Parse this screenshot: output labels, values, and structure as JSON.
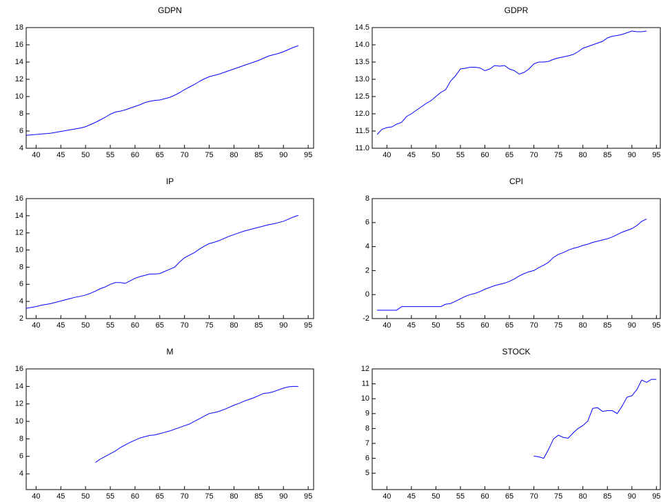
{
  "chart_data": [
    {
      "type": "line",
      "title": "GDPN",
      "color": "#0000ff",
      "x": [
        38,
        39,
        40,
        41,
        42,
        43,
        44,
        45,
        46,
        47,
        48,
        49,
        50,
        51,
        52,
        53,
        54,
        55,
        56,
        57,
        58,
        59,
        60,
        61,
        62,
        63,
        64,
        65,
        66,
        67,
        68,
        69,
        70,
        71,
        72,
        73,
        74,
        75,
        76,
        77,
        78,
        79,
        80,
        81,
        82,
        83,
        84,
        85,
        86,
        87,
        88,
        89,
        90,
        91,
        92,
        93
      ],
      "values": [
        5.5,
        5.55,
        5.6,
        5.65,
        5.7,
        5.75,
        5.85,
        5.95,
        6.05,
        6.15,
        6.25,
        6.35,
        6.5,
        6.75,
        7.0,
        7.3,
        7.6,
        7.95,
        8.2,
        8.3,
        8.45,
        8.65,
        8.85,
        9.05,
        9.3,
        9.45,
        9.55,
        9.6,
        9.75,
        9.9,
        10.15,
        10.45,
        10.8,
        11.1,
        11.4,
        11.75,
        12.05,
        12.3,
        12.45,
        12.6,
        12.8,
        13.0,
        13.2,
        13.4,
        13.6,
        13.8,
        14.0,
        14.2,
        14.45,
        14.7,
        14.85,
        15.0,
        15.2,
        15.45,
        15.7,
        15.9
      ],
      "xlim": [
        38,
        96.1
      ],
      "xticks": [
        40,
        45,
        50,
        55,
        60,
        65,
        70,
        75,
        80,
        85,
        90,
        95
      ],
      "ylim": [
        4,
        18
      ],
      "yticks": [
        4,
        6,
        8,
        10,
        12,
        14,
        16,
        18
      ]
    },
    {
      "type": "line",
      "title": "GDPR",
      "color": "#0000ff",
      "x": [
        38,
        39,
        40,
        41,
        42,
        43,
        44,
        45,
        46,
        47,
        48,
        49,
        50,
        51,
        52,
        53,
        54,
        55,
        56,
        57,
        58,
        59,
        60,
        61,
        62,
        63,
        64,
        65,
        66,
        67,
        68,
        69,
        70,
        71,
        72,
        73,
        74,
        75,
        76,
        77,
        78,
        79,
        80,
        81,
        82,
        83,
        84,
        85,
        86,
        87,
        88,
        89,
        90,
        91,
        92,
        93
      ],
      "values": [
        11.4,
        11.55,
        11.6,
        11.62,
        11.7,
        11.75,
        11.92,
        12.0,
        12.1,
        12.2,
        12.3,
        12.38,
        12.5,
        12.62,
        12.7,
        12.95,
        13.1,
        13.3,
        13.32,
        13.35,
        13.35,
        13.33,
        13.25,
        13.3,
        13.4,
        13.38,
        13.4,
        13.3,
        13.25,
        13.15,
        13.2,
        13.3,
        13.45,
        13.5,
        13.5,
        13.52,
        13.58,
        13.62,
        13.65,
        13.68,
        13.72,
        13.8,
        13.9,
        13.95,
        14.0,
        14.05,
        14.1,
        14.2,
        14.25,
        14.27,
        14.3,
        14.35,
        14.4,
        14.38,
        14.38,
        14.4
      ],
      "xlim": [
        37,
        95.8
      ],
      "xticks": [
        40,
        45,
        50,
        55,
        60,
        65,
        70,
        75,
        80,
        85,
        90,
        95
      ],
      "ylim": [
        11.0,
        14.5
      ],
      "yticks": [
        {
          "value": 11,
          "label": "11.0"
        },
        11.5,
        {
          "value": 12,
          "label": "12.0"
        },
        12.5,
        {
          "value": 13,
          "label": "13.0"
        },
        13.5,
        {
          "value": 14,
          "label": "14.0"
        },
        14.5
      ]
    },
    {
      "type": "line",
      "title": "IP",
      "color": "#0000ff",
      "x": [
        38,
        39,
        40,
        41,
        42,
        43,
        44,
        45,
        46,
        47,
        48,
        49,
        50,
        51,
        52,
        53,
        54,
        55,
        56,
        57,
        58,
        59,
        60,
        61,
        62,
        63,
        64,
        65,
        66,
        67,
        68,
        69,
        70,
        71,
        72,
        73,
        74,
        75,
        76,
        77,
        78,
        79,
        80,
        81,
        82,
        83,
        84,
        85,
        86,
        87,
        88,
        89,
        90,
        91,
        92,
        93
      ],
      "values": [
        3.2,
        3.3,
        3.4,
        3.55,
        3.65,
        3.75,
        3.9,
        4.05,
        4.2,
        4.35,
        4.5,
        4.6,
        4.75,
        4.95,
        5.2,
        5.5,
        5.7,
        6.0,
        6.2,
        6.2,
        6.1,
        6.4,
        6.7,
        6.9,
        7.05,
        7.2,
        7.2,
        7.25,
        7.5,
        7.75,
        8.0,
        8.6,
        9.1,
        9.4,
        9.7,
        10.1,
        10.45,
        10.75,
        10.9,
        11.1,
        11.35,
        11.6,
        11.8,
        12.0,
        12.2,
        12.35,
        12.5,
        12.65,
        12.8,
        12.95,
        13.05,
        13.2,
        13.35,
        13.6,
        13.85,
        14.05
      ],
      "xlim": [
        38,
        96.1
      ],
      "xticks": [
        40,
        45,
        50,
        55,
        60,
        65,
        70,
        75,
        80,
        85,
        90,
        95
      ],
      "ylim": [
        2,
        16
      ],
      "yticks": [
        2,
        4,
        6,
        8,
        10,
        12,
        14,
        16
      ]
    },
    {
      "type": "line",
      "title": "CPI",
      "color": "#0000ff",
      "x": [
        38,
        39,
        40,
        41,
        42,
        43,
        44,
        45,
        46,
        47,
        48,
        49,
        50,
        51,
        52,
        53,
        54,
        55,
        56,
        57,
        58,
        59,
        60,
        61,
        62,
        63,
        64,
        65,
        66,
        67,
        68,
        69,
        70,
        71,
        72,
        73,
        74,
        75,
        76,
        77,
        78,
        79,
        80,
        81,
        82,
        83,
        84,
        85,
        86,
        87,
        88,
        89,
        90,
        91,
        92,
        93
      ],
      "values": [
        -1.3,
        -1.3,
        -1.3,
        -1.3,
        -1.3,
        -1.0,
        -1.0,
        -1.0,
        -1.0,
        -1.0,
        -1.0,
        -1.0,
        -1.0,
        -1.0,
        -0.8,
        -0.75,
        -0.55,
        -0.35,
        -0.15,
        0.0,
        0.1,
        0.25,
        0.45,
        0.6,
        0.75,
        0.85,
        0.95,
        1.1,
        1.3,
        1.55,
        1.75,
        1.9,
        2.0,
        2.25,
        2.45,
        2.7,
        3.1,
        3.35,
        3.5,
        3.7,
        3.85,
        3.95,
        4.1,
        4.2,
        4.35,
        4.45,
        4.55,
        4.65,
        4.8,
        5.0,
        5.2,
        5.35,
        5.5,
        5.75,
        6.1,
        6.3
      ],
      "xlim": [
        37,
        95.8
      ],
      "xticks": [
        40,
        45,
        50,
        55,
        60,
        65,
        70,
        75,
        80,
        85,
        90,
        95
      ],
      "ylim": [
        -2,
        8
      ],
      "yticks": [
        -2,
        0,
        2,
        4,
        6,
        8
      ]
    },
    {
      "type": "line",
      "title": "M",
      "color": "#0000ff",
      "x": [
        52,
        53,
        54,
        55,
        56,
        57,
        58,
        59,
        60,
        61,
        62,
        63,
        64,
        65,
        66,
        67,
        68,
        69,
        70,
        71,
        72,
        73,
        74,
        75,
        76,
        77,
        78,
        79,
        80,
        81,
        82,
        83,
        84,
        85,
        86,
        87,
        88,
        89,
        90,
        91,
        92,
        93
      ],
      "values": [
        5.3,
        5.7,
        6.0,
        6.3,
        6.6,
        7.0,
        7.3,
        7.6,
        7.85,
        8.1,
        8.25,
        8.4,
        8.45,
        8.6,
        8.75,
        8.9,
        9.1,
        9.3,
        9.5,
        9.7,
        10.0,
        10.3,
        10.6,
        10.9,
        11.0,
        11.15,
        11.35,
        11.6,
        11.85,
        12.05,
        12.3,
        12.5,
        12.7,
        12.95,
        13.2,
        13.25,
        13.4,
        13.6,
        13.8,
        13.95,
        14.0,
        14.0
      ],
      "xlim": [
        38,
        96.1
      ],
      "xticks": [
        40,
        45,
        50,
        55,
        60,
        65,
        70,
        75,
        80,
        85,
        90,
        95
      ],
      "ylim": [
        2.2,
        16
      ],
      "yticks": [
        4,
        6,
        8,
        10,
        12,
        14,
        16
      ]
    },
    {
      "type": "line",
      "title": "STOCK",
      "color": "#0000ff",
      "x": [
        70,
        71,
        72,
        73,
        74,
        75,
        76,
        77,
        78,
        79,
        80,
        81,
        82,
        83,
        84,
        85,
        86,
        87,
        88,
        89,
        90,
        91,
        92,
        93,
        94,
        95
      ],
      "values": [
        6.15,
        6.1,
        6.0,
        6.6,
        7.3,
        7.55,
        7.4,
        7.35,
        7.7,
        8.0,
        8.2,
        8.5,
        9.35,
        9.4,
        9.15,
        9.2,
        9.2,
        9.0,
        9.5,
        10.1,
        10.2,
        10.6,
        11.25,
        11.1,
        11.3,
        11.3
      ],
      "xlim": [
        37,
        95.8
      ],
      "xticks": [
        40,
        45,
        50,
        55,
        60,
        65,
        70,
        75,
        80,
        85,
        90,
        95
      ],
      "ylim": [
        3.9,
        12
      ],
      "yticks": [
        5,
        6,
        7,
        8,
        9,
        10,
        11,
        12
      ]
    }
  ]
}
